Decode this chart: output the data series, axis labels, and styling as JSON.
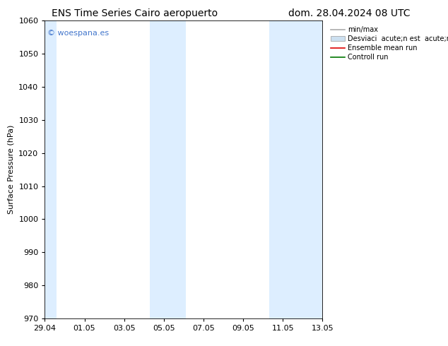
{
  "title_left": "ENS Time Series Cairo aeropuerto",
  "title_right": "dom. 28.04.2024 08 UTC",
  "ylabel": "Surface Pressure (hPa)",
  "ylim": [
    970,
    1060
  ],
  "yticks": [
    970,
    980,
    990,
    1000,
    1010,
    1020,
    1030,
    1040,
    1050,
    1060
  ],
  "xtick_labels": [
    "29.04",
    "01.05",
    "03.05",
    "05.05",
    "07.05",
    "09.05",
    "11.05",
    "13.05"
  ],
  "xtick_positions": [
    0,
    2,
    4,
    6,
    8,
    10,
    12,
    14
  ],
  "xlim": [
    0,
    14
  ],
  "bg_color": "#ffffff",
  "plot_bg_color": "#ffffff",
  "shaded_bands": [
    {
      "x_start": 0.0,
      "x_end": 0.6,
      "color": "#ddeeff"
    },
    {
      "x_start": 5.3,
      "x_end": 7.1,
      "color": "#ddeeff"
    },
    {
      "x_start": 11.3,
      "x_end": 14.0,
      "color": "#ddeeff"
    }
  ],
  "watermark_text": "© woespana.es",
  "watermark_color": "#4477cc",
  "legend_labels": [
    "min/max",
    "Desviaci  acute;n est  acute;ndar",
    "Ensemble mean run",
    "Controll run"
  ],
  "legend_colors": [
    "#aaaaaa",
    "#cce0f0",
    "#dd0000",
    "#007700"
  ],
  "legend_lw": [
    1.2,
    8,
    1.2,
    1.2
  ],
  "title_fontsize": 10,
  "label_fontsize": 8,
  "tick_fontsize": 8
}
